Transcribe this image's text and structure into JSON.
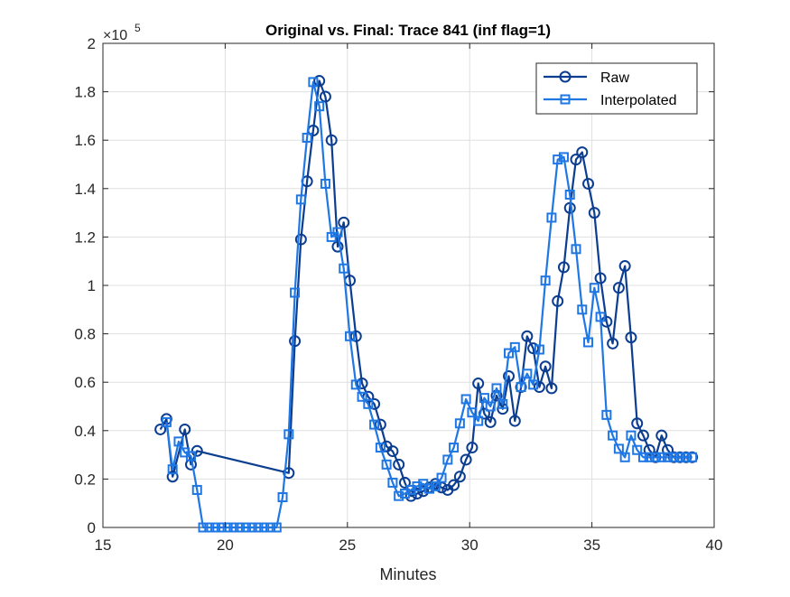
{
  "chart_data": {
    "type": "line",
    "title": "Original vs. Final: Trace 841 (inf flag=1)",
    "xlabel": "Minutes",
    "ylabel": "",
    "y_exponent_label": "×10",
    "y_exponent_power": "5",
    "xlim": [
      15,
      40
    ],
    "ylim": [
      0,
      2
    ],
    "xticks": [
      15,
      20,
      25,
      30,
      35,
      40
    ],
    "xtick_labels": [
      "15",
      "20",
      "25",
      "30",
      "35",
      "40"
    ],
    "yticks": [
      0,
      0.2,
      0.4,
      0.6,
      0.8,
      1,
      1.2,
      1.4,
      1.6,
      1.8,
      2
    ],
    "ytick_labels": [
      "0",
      "0.2",
      "0.4",
      "0.6",
      "0.8",
      "1",
      "1.2",
      "1.4",
      "1.6",
      "1.8",
      "2"
    ],
    "grid": true,
    "legend_position": "top-right",
    "series": [
      {
        "name": "Raw",
        "marker": "circle",
        "color": "#0b3d91",
        "x": [
          17.35,
          17.6,
          17.85,
          18.35,
          18.6,
          18.85,
          22.6,
          22.85,
          23.1,
          23.35,
          23.6,
          23.85,
          24.1,
          24.35,
          24.6,
          24.85,
          25.1,
          25.35,
          25.6,
          25.85,
          26.1,
          26.35,
          26.6,
          26.85,
          27.1,
          27.35,
          27.6,
          27.85,
          28.1,
          28.35,
          28.6,
          28.85,
          29.1,
          29.35,
          29.6,
          29.85,
          30.1,
          30.35,
          30.6,
          30.85,
          31.1,
          31.35,
          31.6,
          31.85,
          32.1,
          32.35,
          32.6,
          32.85,
          33.1,
          33.35,
          33.6,
          33.85,
          34.1,
          34.35,
          34.6,
          34.85,
          35.1,
          35.35,
          35.6,
          35.85,
          36.1,
          36.35,
          36.6,
          36.85,
          37.1,
          37.35,
          37.6,
          37.85,
          38.1,
          38.35,
          38.6,
          38.85,
          39.1
        ],
        "values": [
          0.405,
          0.448,
          0.21,
          0.405,
          0.26,
          0.316,
          0.225,
          0.77,
          1.19,
          1.43,
          1.64,
          1.845,
          1.78,
          1.6,
          1.16,
          1.26,
          1.02,
          0.79,
          0.595,
          0.54,
          0.51,
          0.425,
          0.335,
          0.315,
          0.26,
          0.185,
          0.13,
          0.14,
          0.15,
          0.165,
          0.18,
          0.165,
          0.155,
          0.175,
          0.21,
          0.28,
          0.33,
          0.595,
          0.47,
          0.435,
          0.545,
          0.49,
          0.625,
          0.44,
          0.58,
          0.79,
          0.74,
          0.58,
          0.665,
          0.575,
          0.935,
          1.075,
          1.32,
          1.52,
          1.55,
          1.42,
          1.3,
          1.03,
          0.85,
          0.76,
          0.99,
          1.08,
          0.785,
          0.43,
          0.38,
          0.32,
          0.29,
          0.38,
          0.32,
          0.29,
          0.29,
          0.29,
          0.29
        ]
      },
      {
        "name": "Interpolated",
        "marker": "square",
        "color": "#1f77e4",
        "x": [
          17.6,
          17.85,
          18.1,
          18.35,
          18.6,
          18.85,
          19.1,
          19.35,
          19.6,
          19.85,
          20.1,
          20.35,
          20.6,
          20.85,
          21.1,
          21.35,
          21.6,
          21.85,
          22.1,
          22.35,
          22.6,
          22.85,
          23.1,
          23.35,
          23.6,
          23.85,
          24.1,
          24.35,
          24.6,
          24.85,
          25.1,
          25.35,
          25.6,
          25.85,
          26.1,
          26.35,
          26.6,
          26.85,
          27.1,
          27.35,
          27.6,
          27.85,
          28.1,
          28.35,
          28.6,
          28.85,
          29.1,
          29.35,
          29.6,
          29.85,
          30.1,
          30.35,
          30.6,
          30.85,
          31.1,
          31.35,
          31.6,
          31.85,
          32.1,
          32.35,
          32.6,
          32.85,
          33.1,
          33.35,
          33.6,
          33.85,
          34.1,
          34.35,
          34.6,
          34.85,
          35.1,
          35.35,
          35.6,
          35.85,
          36.1,
          36.35,
          36.6,
          36.85,
          37.1,
          37.35,
          37.6,
          37.85,
          38.1,
          38.35,
          38.6,
          38.85,
          39.1
        ],
        "values": [
          0.435,
          0.24,
          0.355,
          0.31,
          0.295,
          0.155,
          0.0,
          0.0,
          0.0,
          0.0,
          0.0,
          0.0,
          0.0,
          0.0,
          0.0,
          0.0,
          0.0,
          0.0,
          0.0,
          0.125,
          0.385,
          0.97,
          1.355,
          1.61,
          1.84,
          1.74,
          1.42,
          1.2,
          1.22,
          1.07,
          0.79,
          0.59,
          0.54,
          0.51,
          0.425,
          0.33,
          0.26,
          0.185,
          0.13,
          0.14,
          0.155,
          0.17,
          0.18,
          0.16,
          0.17,
          0.205,
          0.28,
          0.33,
          0.43,
          0.53,
          0.475,
          0.44,
          0.535,
          0.5,
          0.575,
          0.51,
          0.72,
          0.745,
          0.58,
          0.635,
          0.59,
          0.735,
          1.02,
          1.28,
          1.52,
          1.53,
          1.375,
          1.15,
          0.9,
          0.765,
          0.99,
          0.87,
          0.465,
          0.38,
          0.325,
          0.29,
          0.38,
          0.32,
          0.29,
          0.29,
          0.29,
          0.29,
          0.29,
          0.29,
          0.29,
          0.29,
          0.29
        ]
      }
    ]
  }
}
